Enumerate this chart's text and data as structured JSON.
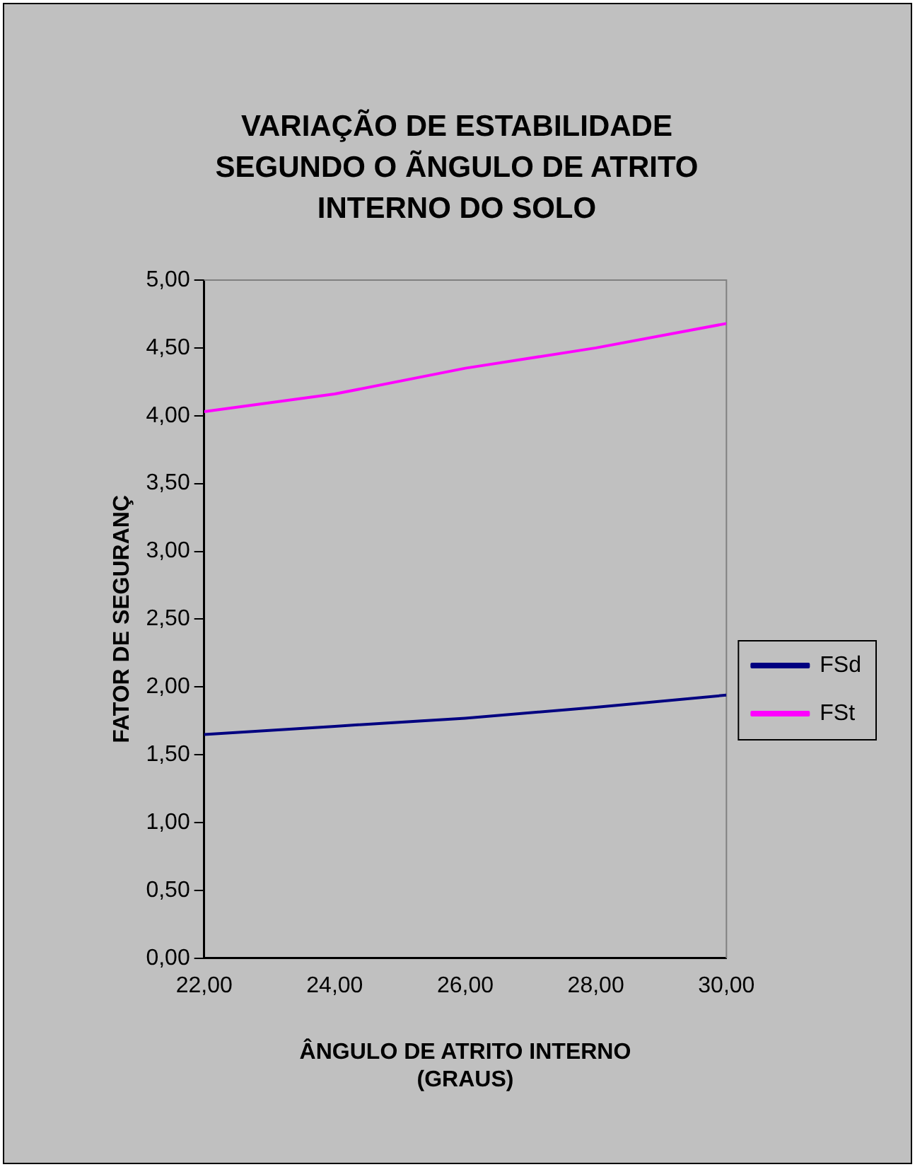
{
  "chart_data": {
    "type": "line",
    "title": "VARIAÇÃO DE ESTABILIDADE SEGUNDO O ÃNGULO DE ATRITO INTERNO DO SOLO",
    "xlabel": "ÂNGULO DE ATRITO INTERNO (GRAUS)",
    "ylabel": "FATOR DE SEGURANÇ",
    "x": [
      22,
      24,
      26,
      28,
      30
    ],
    "series": [
      {
        "name": "FSd",
        "color": "#000080",
        "values": [
          1.65,
          1.71,
          1.77,
          1.85,
          1.94
        ]
      },
      {
        "name": "FSt",
        "color": "#ff00ff",
        "values": [
          4.03,
          4.16,
          4.35,
          4.5,
          4.68
        ]
      }
    ],
    "xlim": [
      22,
      30
    ],
    "xticks": [
      {
        "value": 22,
        "label": "22,00"
      },
      {
        "value": 24,
        "label": "24,00"
      },
      {
        "value": 26,
        "label": "26,00"
      },
      {
        "value": 28,
        "label": "28,00"
      },
      {
        "value": 30,
        "label": "30,00"
      }
    ],
    "ylim": [
      0,
      5
    ],
    "yticks": [
      {
        "value": 0,
        "label": "0,00"
      },
      {
        "value": 0.5,
        "label": "0,50"
      },
      {
        "value": 1,
        "label": "1,00"
      },
      {
        "value": 1.5,
        "label": "1,50"
      },
      {
        "value": 2,
        "label": "2,00"
      },
      {
        "value": 2.5,
        "label": "2,50"
      },
      {
        "value": 3,
        "label": "3,00"
      },
      {
        "value": 3.5,
        "label": "3,50"
      },
      {
        "value": 4,
        "label": "4,00"
      },
      {
        "value": 4.5,
        "label": "4,50"
      },
      {
        "value": 5,
        "label": "5,00"
      }
    ],
    "grid": false,
    "legend": "right",
    "marker": "none",
    "line_style": "solid"
  }
}
